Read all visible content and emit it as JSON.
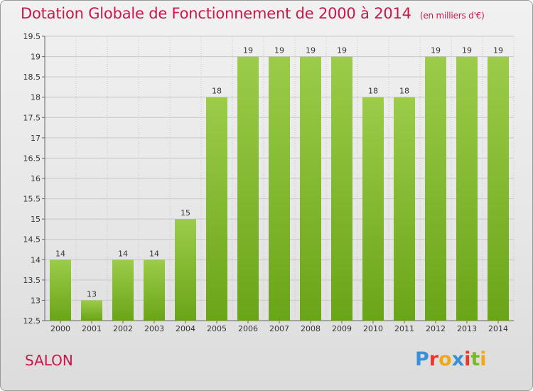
{
  "header": {
    "title": "Dotation Globale de Fonctionnement de 2000 à 2014",
    "unit": "(en milliers d'€)"
  },
  "footer": {
    "city": "SALON",
    "logo": "Proxiti",
    "logo_colors": [
      "#3a8fd6",
      "#e8382c",
      "#f0a818",
      "#3a8fd6",
      "#e8382c",
      "#7ab82a",
      "#f0a818"
    ]
  },
  "chart_data": {
    "type": "bar",
    "title": "Dotation Globale de Fonctionnement de 2000 à 2014",
    "subtitle": "(en milliers d'€)",
    "xlabel": "",
    "ylabel": "",
    "categories": [
      "2000",
      "2001",
      "2002",
      "2003",
      "2004",
      "2005",
      "2006",
      "2007",
      "2008",
      "2009",
      "2010",
      "2011",
      "2012",
      "2013",
      "2014"
    ],
    "values": [
      14,
      13,
      14,
      14,
      15,
      18,
      19,
      19,
      19,
      19,
      18,
      18,
      19,
      19,
      19
    ],
    "data_labels": [
      "14",
      "13",
      "14",
      "14",
      "15",
      "18",
      "19",
      "19",
      "19",
      "19",
      "18",
      "18",
      "19",
      "19",
      "19"
    ],
    "ylim": [
      12.5,
      19.5
    ],
    "yticks": [
      "12.5",
      "13",
      "13.5",
      "14",
      "14.5",
      "15",
      "15.5",
      "16",
      "16.5",
      "17",
      "17.5",
      "18",
      "18.5",
      "19",
      "19.5"
    ],
    "grid": true,
    "legend": "none",
    "bar_color_top": "#9ccc4a",
    "bar_color_bottom": "#6aa418"
  }
}
